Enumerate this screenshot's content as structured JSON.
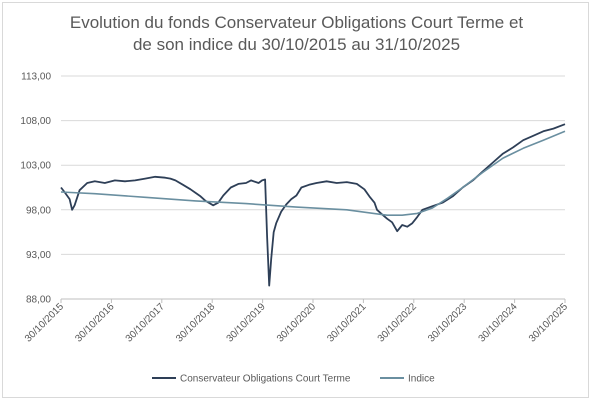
{
  "chart_data": {
    "type": "line",
    "title_line1": "Evolution du fonds Conservateur Obligations Court Terme et",
    "title_line2": "de son indice du 30/10/2015 au 31/10/2025",
    "ylim": [
      88,
      113
    ],
    "yticks": [
      "113,00",
      "108,00",
      "103,00",
      "98,00",
      "93,00",
      "88,00"
    ],
    "ytick_values": [
      113,
      108,
      103,
      98,
      93,
      88
    ],
    "xlim": [
      2015.83,
      2025.83
    ],
    "xticks": [
      "30/10/2015",
      "30/10/2016",
      "30/10/2017",
      "30/10/2018",
      "30/10/2019",
      "30/10/2020",
      "30/10/2021",
      "30/10/2022",
      "30/10/2023",
      "30/10/2024",
      "30/10/2025"
    ],
    "legend_position": "bottom",
    "grid": "horizontal",
    "series": [
      {
        "name": "Conservateur Obligations Court Terme",
        "color": "#2e3f57",
        "x": [
          2015.83,
          2015.9,
          2016.0,
          2016.05,
          2016.1,
          2016.2,
          2016.35,
          2016.5,
          2016.7,
          2016.9,
          2017.1,
          2017.3,
          2017.5,
          2017.7,
          2017.9,
          2018.0,
          2018.1,
          2018.25,
          2018.4,
          2018.5,
          2018.6,
          2018.7,
          2018.85,
          2018.95,
          2019.05,
          2019.2,
          2019.35,
          2019.5,
          2019.6,
          2019.75,
          2019.82,
          2019.88,
          2019.92,
          2019.96,
          2020.0,
          2020.05,
          2020.1,
          2020.2,
          2020.3,
          2020.4,
          2020.5,
          2020.6,
          2020.75,
          2020.9,
          2021.1,
          2021.3,
          2021.5,
          2021.7,
          2021.85,
          2021.95,
          2022.05,
          2022.1,
          2022.2,
          2022.3,
          2022.4,
          2022.5,
          2022.6,
          2022.7,
          2022.8,
          2022.9,
          2023.0,
          2023.2,
          2023.4,
          2023.6,
          2023.8,
          2024.0,
          2024.2,
          2024.4,
          2024.6,
          2024.8,
          2025.0,
          2025.2,
          2025.4,
          2025.6,
          2025.83
        ],
        "values": [
          100.5,
          100.0,
          99.2,
          98.0,
          98.5,
          100.2,
          101.0,
          101.2,
          101.0,
          101.3,
          101.2,
          101.3,
          101.5,
          101.7,
          101.6,
          101.5,
          101.3,
          100.8,
          100.3,
          99.9,
          99.5,
          99.0,
          98.5,
          98.8,
          99.6,
          100.5,
          100.9,
          101.0,
          101.3,
          101.0,
          101.3,
          101.4,
          95.0,
          89.5,
          92.5,
          95.5,
          96.5,
          97.8,
          98.6,
          99.2,
          99.6,
          100.5,
          100.8,
          101.0,
          101.2,
          101.0,
          101.1,
          100.9,
          100.3,
          99.5,
          98.8,
          98.0,
          97.5,
          97.0,
          96.6,
          95.6,
          96.3,
          96.1,
          96.5,
          97.2,
          98.0,
          98.4,
          98.8,
          99.5,
          100.5,
          101.3,
          102.3,
          103.3,
          104.3,
          105.0,
          105.8,
          106.3,
          106.8,
          107.1,
          107.6
        ]
      },
      {
        "name": "Indice",
        "color": "#6a8fa0",
        "x": [
          2015.83,
          2016.5,
          2017.5,
          2018.5,
          2019.5,
          2020.5,
          2021.5,
          2022.3,
          2022.6,
          2022.9,
          2023.2,
          2023.5,
          2023.8,
          2024.2,
          2024.6,
          2025.0,
          2025.4,
          2025.83
        ],
        "values": [
          100.0,
          99.8,
          99.4,
          99.0,
          98.7,
          98.3,
          98.0,
          97.4,
          97.4,
          97.6,
          98.2,
          99.3,
          100.5,
          102.2,
          103.8,
          104.9,
          105.8,
          106.8
        ]
      }
    ]
  }
}
